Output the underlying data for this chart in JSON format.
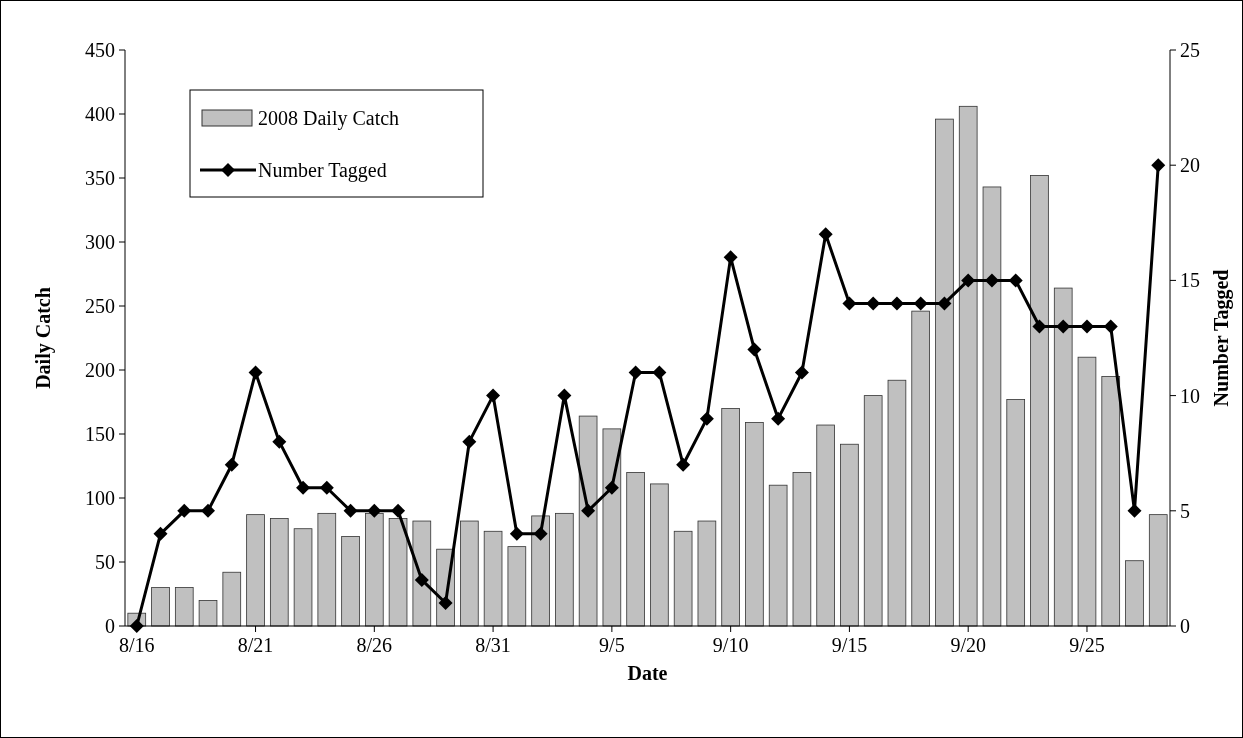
{
  "chart_data": {
    "type": "bar",
    "xlabel": "Date",
    "ylabel": "Daily Catch",
    "y2label": "Number Tagged",
    "categories": [
      "8/16",
      null,
      null,
      null,
      null,
      "8/21",
      null,
      null,
      null,
      null,
      "8/26",
      null,
      null,
      null,
      null,
      "8/31",
      null,
      null,
      null,
      null,
      "9/5",
      null,
      null,
      null,
      null,
      "9/10",
      null,
      null,
      null,
      null,
      "9/15",
      null,
      null,
      null,
      null,
      "9/20",
      null,
      null,
      null,
      null,
      "9/25",
      null,
      null,
      null
    ],
    "series": [
      {
        "name": "2008 Daily Catch",
        "color": "#c0c0c0",
        "values": [
          10,
          30,
          30,
          20,
          42,
          87,
          84,
          76,
          88,
          70,
          88,
          84,
          82,
          60,
          82,
          74,
          62,
          86,
          88,
          164,
          154,
          120,
          111,
          74,
          82,
          170,
          159,
          110,
          120,
          157,
          142,
          180,
          192,
          246,
          396,
          406,
          343,
          177,
          352,
          264,
          210,
          195,
          51,
          87
        ]
      },
      {
        "name": "Number Tagged",
        "type": "line",
        "axis": "y2",
        "color": "#000000",
        "marker": "diamond",
        "values": [
          0,
          4,
          5,
          5,
          7,
          11,
          8,
          6,
          6,
          5,
          5,
          5,
          2,
          1,
          8,
          10,
          4,
          4,
          10,
          5,
          6,
          11,
          11,
          7,
          9,
          16,
          12,
          9,
          11,
          17,
          14,
          14,
          14,
          14,
          14,
          15,
          15,
          15,
          13,
          13,
          13,
          13,
          5,
          20
        ]
      }
    ],
    "ylim": [
      0,
      450
    ],
    "yticks": [
      0,
      50,
      100,
      150,
      200,
      250,
      300,
      350,
      400,
      450
    ],
    "y2lim": [
      0,
      25
    ],
    "y2ticks": [
      0,
      5,
      10,
      15,
      20,
      25
    ],
    "legend": "top left",
    "grid": false
  }
}
